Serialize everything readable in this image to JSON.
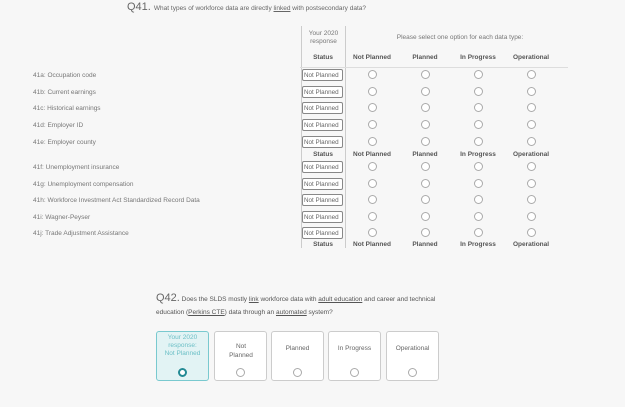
{
  "q41": {
    "number": "Q41.",
    "text_pre": "What types of workforce data are directly ",
    "text_link": "linked",
    "text_post": " with postsecondary data?",
    "response_header": "Your 2020 response",
    "instruction": "Please select one option for each data type:",
    "columns": [
      "Status",
      "Not Planned",
      "Planned",
      "In Progress",
      "Operational"
    ],
    "rows": [
      {
        "label": "41a: Occupation code",
        "status": "Not Planned"
      },
      {
        "label": "41b: Current earnings",
        "status": "Not Planned"
      },
      {
        "label": "41c: Historical earnings",
        "status": "Not Planned"
      },
      {
        "label": "41d: Employer ID",
        "status": "Not Planned"
      },
      {
        "label": "41e: Employer county",
        "status": "Not Planned"
      },
      {
        "label": "41f: Unemployment insurance",
        "status": "Not Planned"
      },
      {
        "label": "41g: Unemployment compensation",
        "status": "Not Planned"
      },
      {
        "label": "41h: Workforce Investment Act Standardized Record Data",
        "status": "Not Planned"
      },
      {
        "label": "41i: Wagner-Peyser",
        "status": "Not Planned"
      },
      {
        "label": "41j: Trade Adjustment Assistance",
        "status": "Not Planned"
      }
    ]
  },
  "q42": {
    "number": "Q42.",
    "p1": "Does the SLDS mostly ",
    "l1": "link",
    "p2": " workforce data with ",
    "l2": "adult education",
    "p3": " and career and technical",
    "p4": "education (",
    "l3": "Perkins CTE",
    "p5": ") data through an ",
    "l4": "automated",
    "p6": " system?",
    "response_label": "Your 2020 response:",
    "response_value": "Not Planned",
    "options": [
      "Not Planned",
      "Planned",
      "In Progress",
      "Operational"
    ]
  },
  "colors": {
    "accent": "#238a94",
    "selected_bg": "#e2f3f4"
  }
}
